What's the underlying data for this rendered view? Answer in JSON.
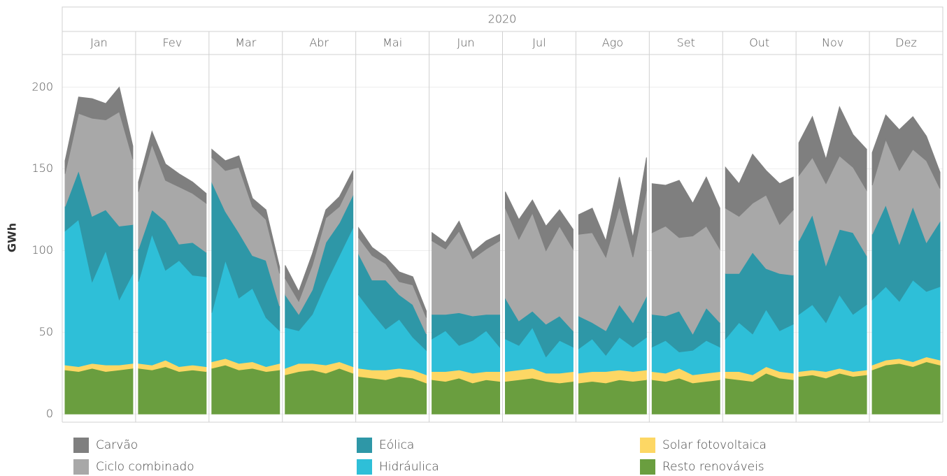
{
  "chart_data": {
    "type": "area",
    "stacked": true,
    "header": "2020",
    "categories": [
      "Jan",
      "Fev",
      "Mar",
      "Abr",
      "Mai",
      "Jun",
      "Jul",
      "Ago",
      "Set",
      "Out",
      "Nov",
      "Dez"
    ],
    "y_label": "GWh",
    "ylim": [
      -5,
      220
    ],
    "yticks": [
      0,
      50,
      100,
      150,
      200
    ],
    "grid": true,
    "series": [
      {
        "name": "Carvão",
        "color": "#7f7f7f",
        "values": [
          [
            8,
            10,
            12,
            10,
            15,
            8
          ],
          [
            6,
            8,
            10,
            8,
            7,
            6
          ],
          [
            5,
            6,
            7,
            5,
            6,
            4
          ],
          [
            8,
            6,
            7,
            5,
            6,
            5
          ],
          [
            6,
            5,
            4,
            6,
            5,
            4
          ],
          [
            5,
            4,
            6,
            4,
            5,
            4
          ],
          [
            10,
            12,
            8,
            15,
            10,
            12
          ],
          [
            12,
            15,
            10,
            18,
            12,
            20
          ],
          [
            30,
            25,
            35,
            20,
            30,
            25
          ],
          [
            25,
            20,
            30,
            15,
            25,
            20
          ],
          [
            20,
            25,
            15,
            30,
            20,
            25
          ],
          [
            20,
            15,
            25,
            20,
            15,
            10
          ]
        ]
      },
      {
        "name": "Ciclo combinado",
        "color": "#a8a8a8",
        "values": [
          [
            20,
            35,
            60,
            55,
            70,
            40
          ],
          [
            35,
            40,
            25,
            35,
            30,
            30
          ],
          [
            15,
            25,
            40,
            30,
            25,
            20
          ],
          [
            10,
            8,
            15,
            15,
            10,
            10
          ],
          [
            10,
            15,
            10,
            8,
            12,
            10
          ],
          [
            45,
            40,
            50,
            35,
            40,
            45
          ],
          [
            55,
            50,
            60,
            45,
            55,
            50
          ],
          [
            50,
            55,
            45,
            60,
            40,
            65
          ],
          [
            50,
            55,
            45,
            60,
            50,
            45
          ],
          [
            40,
            35,
            30,
            45,
            30,
            40
          ],
          [
            40,
            35,
            50,
            45,
            40,
            40
          ],
          [
            30,
            40,
            45,
            35,
            50,
            20
          ]
        ]
      },
      {
        "name": "Eólica",
        "color": "#2e97a7",
        "values": [
          [
            15,
            30,
            40,
            25,
            45,
            30
          ],
          [
            20,
            15,
            30,
            10,
            20,
            15
          ],
          [
            80,
            30,
            40,
            20,
            35,
            15
          ],
          [
            20,
            10,
            15,
            25,
            20,
            20
          ],
          [
            25,
            20,
            30,
            15,
            20,
            10
          ],
          [
            15,
            10,
            20,
            15,
            10,
            20
          ],
          [
            25,
            15,
            10,
            20,
            15,
            10
          ],
          [
            20,
            10,
            15,
            20,
            15,
            25
          ],
          [
            20,
            15,
            25,
            10,
            20,
            15
          ],
          [
            40,
            30,
            50,
            25,
            35,
            30
          ],
          [
            45,
            55,
            35,
            40,
            50,
            30
          ],
          [
            40,
            50,
            35,
            45,
            30,
            40
          ]
        ]
      },
      {
        "name": "Hidráulica",
        "color": "#2ebfd8",
        "values": [
          [
            82,
            90,
            50,
            70,
            40,
            55
          ],
          [
            50,
            80,
            55,
            65,
            55,
            55
          ],
          [
            30,
            60,
            40,
            45,
            30,
            20
          ],
          [
            25,
            20,
            30,
            50,
            65,
            85
          ],
          [
            45,
            35,
            25,
            30,
            20,
            15
          ],
          [
            20,
            25,
            15,
            20,
            25,
            15
          ],
          [
            20,
            15,
            25,
            10,
            20,
            15
          ],
          [
            15,
            20,
            10,
            20,
            15,
            20
          ],
          [
            15,
            20,
            10,
            15,
            20,
            15
          ],
          [
            20,
            30,
            25,
            35,
            25,
            30
          ],
          [
            35,
            40,
            30,
            45,
            35,
            40
          ],
          [
            40,
            45,
            35,
            50,
            40,
            45
          ]
        ]
      },
      {
        "name": "Solar fotovoltaica",
        "color": "#fdd764",
        "values": [
          [
            3,
            3,
            3,
            4,
            3,
            3
          ],
          [
            3,
            3,
            4,
            3,
            3,
            3
          ],
          [
            4,
            4,
            4,
            4,
            3,
            4
          ],
          [
            4,
            5,
            4,
            5,
            4,
            4
          ],
          [
            5,
            5,
            6,
            5,
            5,
            5
          ],
          [
            5,
            6,
            5,
            6,
            5,
            6
          ],
          [
            6,
            6,
            6,
            5,
            6,
            6
          ],
          [
            6,
            6,
            7,
            6,
            6,
            6
          ],
          [
            5,
            5,
            6,
            5,
            5,
            5
          ],
          [
            4,
            5,
            4,
            4,
            4,
            4
          ],
          [
            3,
            3,
            4,
            3,
            3,
            3
          ],
          [
            3,
            3,
            3,
            3,
            3,
            3
          ]
        ]
      },
      {
        "name": "Resto renováveis",
        "color": "#6a9e3f",
        "values": [
          [
            27,
            26,
            28,
            26,
            27,
            28
          ],
          [
            28,
            27,
            29,
            26,
            27,
            26
          ],
          [
            28,
            30,
            27,
            28,
            26,
            27
          ],
          [
            24,
            26,
            27,
            25,
            28,
            25
          ],
          [
            23,
            22,
            21,
            23,
            22,
            19
          ],
          [
            21,
            20,
            22,
            19,
            21,
            20
          ],
          [
            20,
            21,
            22,
            20,
            19,
            20
          ],
          [
            19,
            20,
            19,
            21,
            20,
            21
          ],
          [
            21,
            20,
            22,
            19,
            20,
            21
          ],
          [
            22,
            21,
            20,
            25,
            22,
            21
          ],
          [
            23,
            24,
            22,
            25,
            23,
            24
          ],
          [
            27,
            30,
            31,
            29,
            32,
            30
          ]
        ]
      }
    ]
  }
}
